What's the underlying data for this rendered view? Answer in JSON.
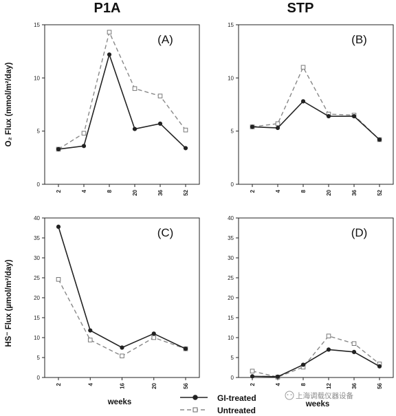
{
  "column_titles": [
    "P1A",
    "STP"
  ],
  "ylabel_top": "O₂ Flux (mmol/m²/day)",
  "ylabel_bottom": "HS⁻ Flux (µmol/m²/day)",
  "xlabel": "weeks",
  "legend": {
    "gi_treated": "GI-treated",
    "untreated": "Untreated"
  },
  "watermark": "上海调载仪器设备",
  "colors": {
    "gi_treated": "#222222",
    "untreated": "#888888"
  },
  "chart_data": [
    {
      "panel": "(A)",
      "type": "line",
      "categories": [
        "2",
        "4",
        "8",
        "20",
        "36",
        "52"
      ],
      "ylim": [
        0,
        15
      ],
      "yticks": [
        0,
        5,
        10,
        15
      ],
      "series": [
        {
          "name": "GI-treated",
          "values": [
            3.3,
            3.6,
            12.2,
            5.2,
            5.7,
            3.4
          ]
        },
        {
          "name": "Untreated",
          "values": [
            3.3,
            4.8,
            14.3,
            9.0,
            8.3,
            5.1
          ]
        }
      ]
    },
    {
      "panel": "(B)",
      "type": "line",
      "categories": [
        "2",
        "4",
        "8",
        "20",
        "36",
        "52"
      ],
      "ylim": [
        0,
        15
      ],
      "yticks": [
        0,
        5,
        10,
        15
      ],
      "series": [
        {
          "name": "GI-treated",
          "values": [
            5.4,
            5.3,
            7.8,
            6.4,
            6.4,
            4.2
          ]
        },
        {
          "name": "Untreated",
          "values": [
            5.4,
            5.7,
            11.0,
            6.6,
            6.5,
            4.2
          ]
        }
      ]
    },
    {
      "panel": "(C)",
      "type": "line",
      "categories": [
        "2",
        "4",
        "16",
        "20",
        "56"
      ],
      "ylim": [
        0,
        40
      ],
      "yticks": [
        0,
        5,
        10,
        15,
        20,
        25,
        30,
        35,
        40
      ],
      "series": [
        {
          "name": "GI-treated",
          "values": [
            37.8,
            11.8,
            7.5,
            11.0,
            7.2
          ]
        },
        {
          "name": "Untreated",
          "values": [
            24.6,
            9.4,
            5.4,
            10.0,
            7.2
          ]
        }
      ]
    },
    {
      "panel": "(D)",
      "type": "line",
      "categories": [
        "2",
        "4",
        "8",
        "12",
        "36",
        "56"
      ],
      "ylim": [
        0,
        40
      ],
      "yticks": [
        0,
        5,
        10,
        15,
        20,
        25,
        30,
        35,
        40
      ],
      "series": [
        {
          "name": "GI-treated",
          "values": [
            0.3,
            0.2,
            3.2,
            7.0,
            6.4,
            2.8
          ]
        },
        {
          "name": "Untreated",
          "values": [
            1.6,
            0.1,
            2.6,
            10.4,
            8.5,
            3.4
          ]
        }
      ]
    }
  ]
}
